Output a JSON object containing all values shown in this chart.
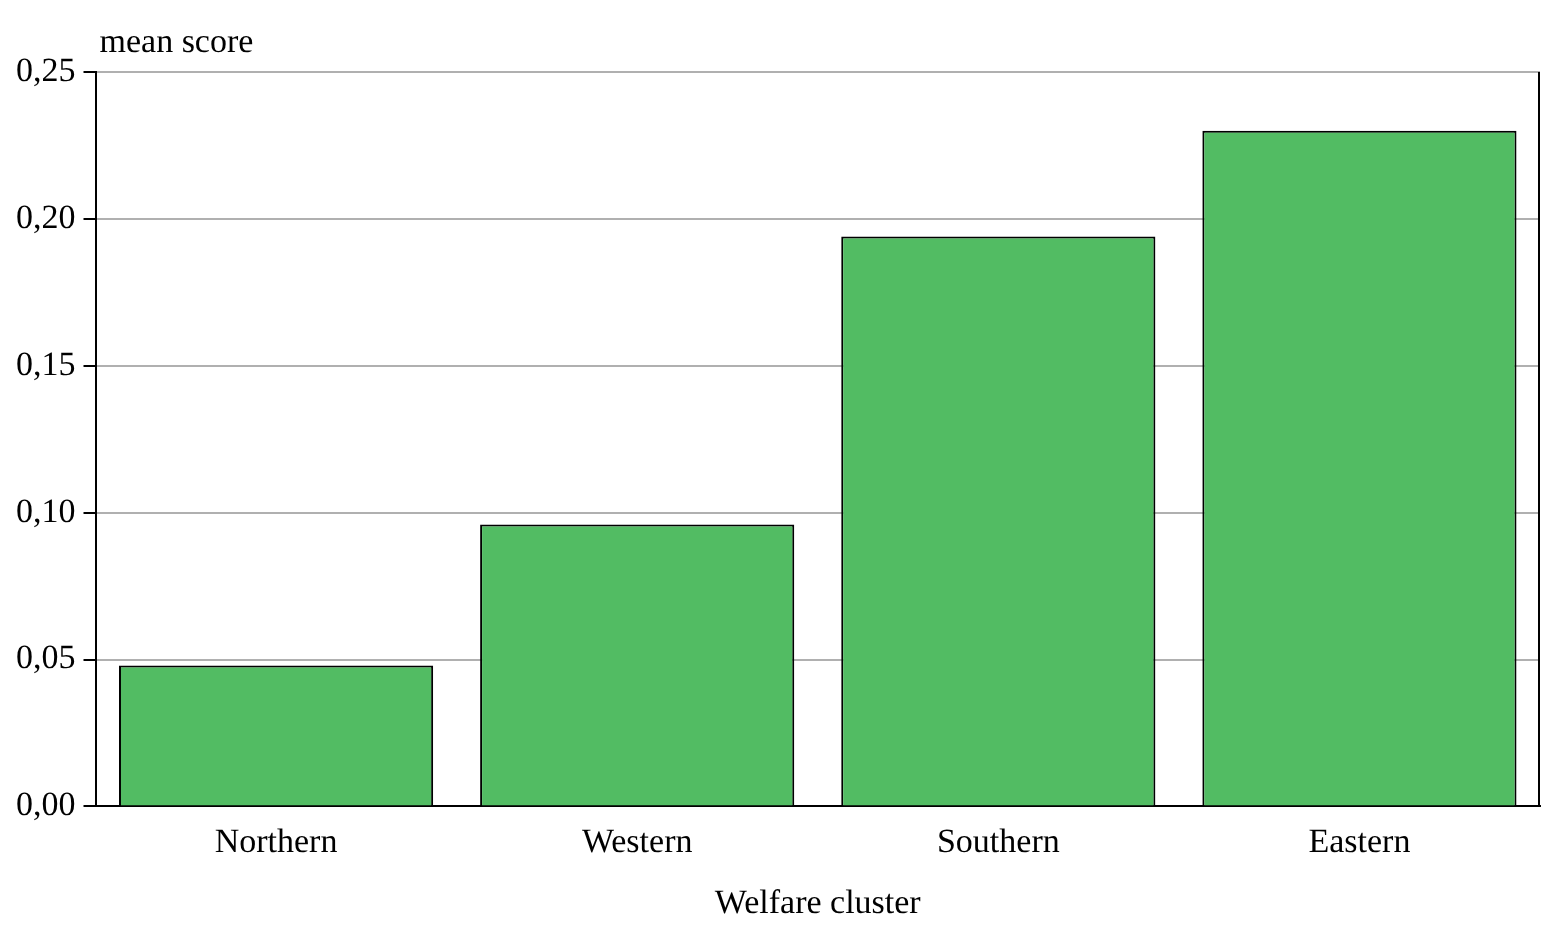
{
  "chart_data": {
    "type": "bar",
    "ylabel": "mean score",
    "xlabel": "Welfare cluster",
    "categories": [
      "Northern",
      "Western",
      "Southern",
      "Eastern"
    ],
    "values": [
      0.048,
      0.096,
      0.194,
      0.23
    ],
    "color": "#52bc63",
    "ylim": [
      0,
      0.25
    ],
    "yticks": [
      {
        "value": 0,
        "label": "0,00"
      },
      {
        "value": 0.05,
        "label": "0,05"
      },
      {
        "value": 0.1,
        "label": "0,10"
      },
      {
        "value": 0.15,
        "label": "0,15"
      },
      {
        "value": 0.2,
        "label": "0,20"
      },
      {
        "value": 0.25,
        "label": "0,25"
      }
    ],
    "grid": "y",
    "legend": false
  }
}
